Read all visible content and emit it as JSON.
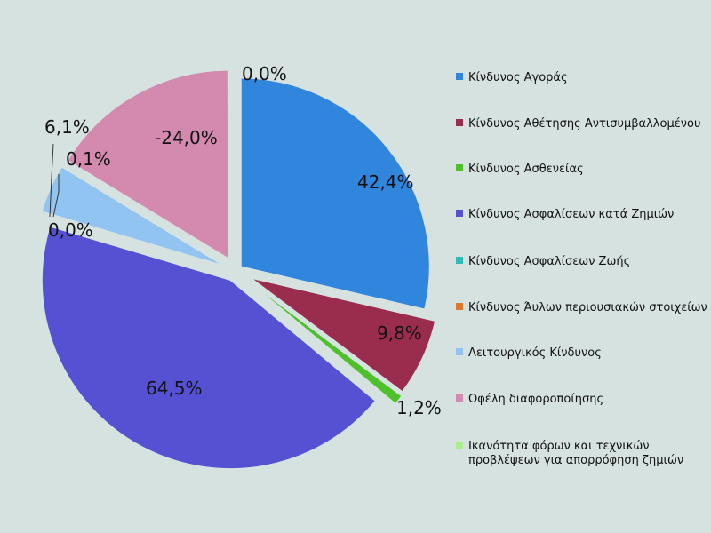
{
  "chart_data": {
    "type": "pie",
    "title": "",
    "slices": [
      {
        "name": "Κίνδυνος Αγοράς",
        "value": 42.4,
        "label": "42,4%",
        "color": "#2f86dc"
      },
      {
        "name": "Κίνδυνος Αθέτησης Αντισυμβαλλομένου",
        "value": 9.8,
        "label": "9,8%",
        "color": "#9a2d4e"
      },
      {
        "name": "Κίνδυνος Ασθενείας",
        "value": 1.2,
        "label": "1,2%",
        "color": "#4ec12a"
      },
      {
        "name": "Κίνδυνος Ασφαλίσεων κατά Ζημιών",
        "value": 64.5,
        "label": "64,5%",
        "color": "#5650d2"
      },
      {
        "name": "Κίνδυνος Ασφαλίσεων Ζωής",
        "value": 0.0,
        "label": "0,0%",
        "color": "#2fbcb6"
      },
      {
        "name": "Κίνδυνος Άυλων περιουσιακών στοιχείων",
        "value": 0.1,
        "label": "0,1%",
        "color": "#e07a2a"
      },
      {
        "name": "Λειτουργικός Κίνδυνος",
        "value": 6.1,
        "label": "6,1%",
        "color": "#92c4f2"
      },
      {
        "name": "Οφέλη διαφοροποίησης",
        "value": -24.0,
        "label": "-24,0%",
        "color": "#d48aae"
      },
      {
        "name": "Ικανότητα φόρων και τεχνικών προβλέψεων για απορρόφηση ζημιών",
        "value": 0.0,
        "label": "0,0%",
        "color": "#a8ee8c"
      }
    ],
    "legend_position": "right"
  }
}
